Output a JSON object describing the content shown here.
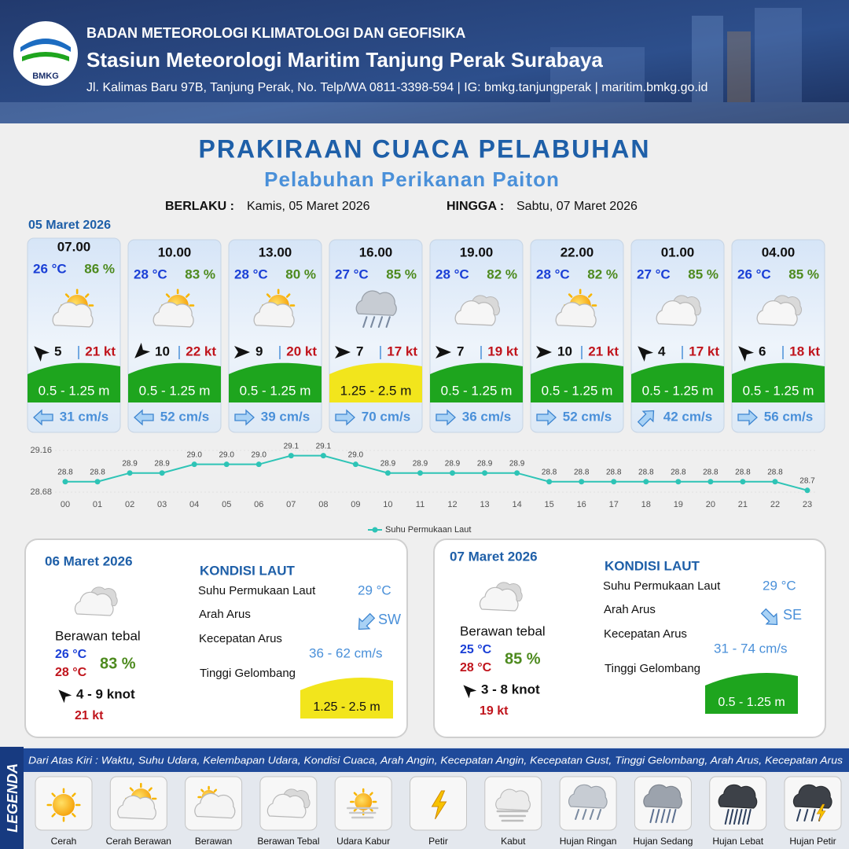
{
  "header": {
    "org": "BADAN METEOROLOGI KLIMATOLOGI DAN GEOFISIKA",
    "station": "Stasiun Meteorologi Maritim Tanjung Perak Surabaya",
    "contact": "Jl. Kalimas Baru 97B, Tanjung Perak, No. Telp/WA 0811-3398-594 | IG: bmkg.tanjungperak | maritim.bmkg.go.id",
    "logo": "BMKG"
  },
  "title": "PRAKIRAAN CUACA PELABUHAN",
  "subtitle": "Pelabuhan Perikanan Paiton",
  "validity": {
    "from_label": "BERLAKU :",
    "from": "Kamis, 05 Maret 2026",
    "to_label": "HINGGA :",
    "to": "Sabtu, 07 Maret 2026"
  },
  "forecast": {
    "date": "05 Maret 2026",
    "items": [
      {
        "time": "07.00",
        "temp": "26 °C",
        "humidity": "86 %",
        "condition": "Cerah Berawan",
        "wind_arrow_deg": 225,
        "wind_speed": "5",
        "gust": "21 kt",
        "wave": "0.5 - 1.25 m",
        "wave_color": "#1ea51e",
        "current_arrow_deg": 180,
        "current": "31 cm/s"
      },
      {
        "time": "10.00",
        "temp": "28 °C",
        "humidity": "83 %",
        "condition": "Cerah Berawan",
        "wind_arrow_deg": 135,
        "wind_speed": "10",
        "gust": "22 kt",
        "wave": "0.5 - 1.25 m",
        "wave_color": "#1ea51e",
        "current_arrow_deg": 180,
        "current": "52 cm/s"
      },
      {
        "time": "13.00",
        "temp": "28 °C",
        "humidity": "80 %",
        "condition": "Cerah Berawan",
        "wind_arrow_deg": 0,
        "wind_speed": "9",
        "gust": "20 kt",
        "wave": "0.5 - 1.25 m",
        "wave_color": "#1ea51e",
        "current_arrow_deg": 0,
        "current": "39 cm/s"
      },
      {
        "time": "16.00",
        "temp": "27 °C",
        "humidity": "85 %",
        "condition": "Hujan Ringan",
        "wind_arrow_deg": 0,
        "wind_speed": "7",
        "gust": "17 kt",
        "wave": "1.25 - 2.5 m",
        "wave_color": "#f2e51c",
        "current_arrow_deg": 0,
        "current": "70 cm/s"
      },
      {
        "time": "19.00",
        "temp": "28 °C",
        "humidity": "82 %",
        "condition": "Berawan Tebal",
        "wind_arrow_deg": 0,
        "wind_speed": "7",
        "gust": "19 kt",
        "wave": "0.5 - 1.25 m",
        "wave_color": "#1ea51e",
        "current_arrow_deg": 0,
        "current": "36 cm/s"
      },
      {
        "time": "22.00",
        "temp": "28 °C",
        "humidity": "82 %",
        "condition": "Cerah Berawan",
        "wind_arrow_deg": 0,
        "wind_speed": "10",
        "gust": "21 kt",
        "wave": "0.5 - 1.25 m",
        "wave_color": "#1ea51e",
        "current_arrow_deg": 0,
        "current": "52 cm/s"
      },
      {
        "time": "01.00",
        "temp": "27 °C",
        "humidity": "85 %",
        "condition": "Berawan Tebal",
        "wind_arrow_deg": 225,
        "wind_speed": "4",
        "gust": "17 kt",
        "wave": "0.5 - 1.25 m",
        "wave_color": "#1ea51e",
        "current_arrow_deg": 315,
        "current": "42 cm/s"
      },
      {
        "time": "04.00",
        "temp": "26 °C",
        "humidity": "85 %",
        "condition": "Berawan Tebal",
        "wind_arrow_deg": 225,
        "wind_speed": "6",
        "gust": "18 kt",
        "wave": "0.5 - 1.25 m",
        "wave_color": "#1ea51e",
        "current_arrow_deg": 0,
        "current": "56 cm/s"
      }
    ]
  },
  "chart_data": {
    "type": "line",
    "categories": [
      "00",
      "01",
      "02",
      "03",
      "04",
      "05",
      "06",
      "07",
      "08",
      "09",
      "10",
      "11",
      "12",
      "13",
      "14",
      "15",
      "16",
      "17",
      "18",
      "19",
      "20",
      "21",
      "22",
      "23"
    ],
    "series": [
      {
        "name": "Suhu Permukaan Laut",
        "color": "#2ec4b6",
        "values": [
          28.8,
          28.8,
          28.9,
          28.9,
          29.0,
          29.0,
          29.0,
          29.1,
          29.1,
          29.0,
          28.9,
          28.9,
          28.9,
          28.9,
          28.9,
          28.8,
          28.8,
          28.8,
          28.8,
          28.8,
          28.8,
          28.8,
          28.8,
          28.7
        ],
        "value_labels": [
          "28.8",
          "28.8",
          "28.9",
          "28.9",
          "29.0",
          "29.0",
          "29.0",
          "29.1",
          "29.1",
          "29.0",
          "28.9",
          "28.9",
          "28.9",
          "28.9",
          "28.9",
          "28.8",
          "28.8",
          "28.8",
          "28.8",
          "28.8",
          "28.8",
          "28.8",
          "28.8",
          "28.7"
        ]
      }
    ],
    "ylim": [
      28.68,
      29.16
    ],
    "yticks": [
      28.68,
      29.16
    ],
    "legend": "bottom"
  },
  "days": [
    {
      "date": "06 Maret 2026",
      "condition": "Berawan Tebal",
      "condition_text": "Berawan tebal",
      "temp_min": "26 °C",
      "temp_max": "28 °C",
      "humidity": "83 %",
      "wind_arrow_deg": 225,
      "wind": "4  - 9 knot",
      "gust": "21 kt",
      "sea_title": "KONDISI LAUT",
      "sst_label": "Suhu Permukaan Laut",
      "sst": "29 °C",
      "current_dir_label": "Arah Arus",
      "current_arrow_deg": 135,
      "current_dir": "SW",
      "current_speed_label": "Kecepatan Arus",
      "current_speed": "36  - 62 cm/s",
      "wave_label": "Tinggi Gelombang",
      "wave": "1.25 - 2.5 m",
      "wave_color": "#f2e51c"
    },
    {
      "date": "07 Maret 2026",
      "condition": "Berawan Tebal",
      "condition_text": "Berawan tebal",
      "temp_min": "25 °C",
      "temp_max": "28 °C",
      "humidity": "85 %",
      "wind_arrow_deg": 225,
      "wind": "3  - 8 knot",
      "gust": "19 kt",
      "sea_title": "KONDISI LAUT",
      "sst_label": "Suhu Permukaan Laut",
      "sst": "29 °C",
      "current_dir_label": "Arah Arus",
      "current_arrow_deg": 45,
      "current_dir": "SE",
      "current_speed_label": "Kecepatan Arus",
      "current_speed": "31 - 74 cm/s",
      "wave_label": "Tinggi Gelombang",
      "wave": "0.5 - 1.25 m",
      "wave_color": "#1ea51e"
    }
  ],
  "legend": {
    "title": "LEGENDA",
    "note": "Dari Atas Kiri : Waktu, Suhu Udara, Kelembapan Udara, Kondisi Cuaca, Arah Angin, Kecepatan Angin, Kecepatan Gust, Tinggi Gelombang, Arah Arus, Kecepatan Arus",
    "items": [
      "Cerah",
      "Cerah Berawan",
      "Berawan",
      "Berawan Tebal",
      "Udara Kabur",
      "Petir",
      "Kabut",
      "Hujan Ringan",
      "Hujan Sedang",
      "Hujan Lebat",
      "Hujan Petir"
    ]
  }
}
